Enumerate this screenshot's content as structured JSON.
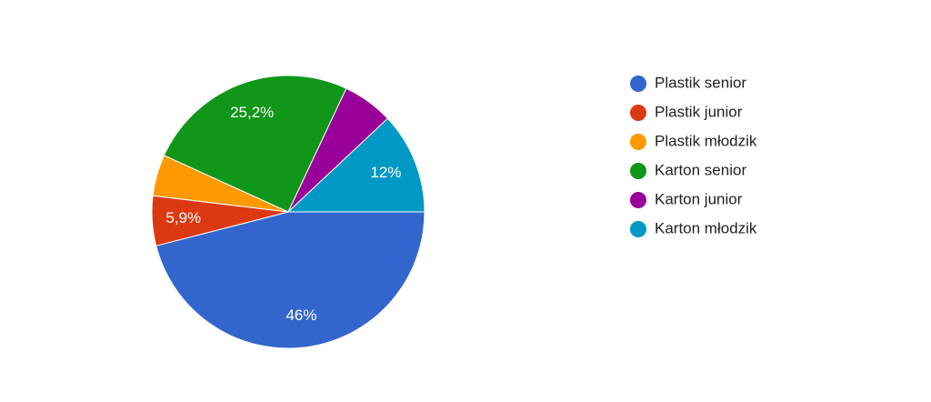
{
  "chart_data": {
    "type": "pie",
    "categories": [
      "Plastik senior",
      "Plastik junior",
      "Plastik młodzik",
      "Karton senior",
      "Karton junior",
      "Karton młodzik"
    ],
    "values": [
      46,
      5.9,
      4.9,
      25.2,
      6.0,
      12
    ],
    "value_labels": [
      "46%",
      "5,9%",
      null,
      "25,2%",
      null,
      "12%"
    ],
    "colors": [
      "#3366cc",
      "#dc3912",
      "#ff9900",
      "#109618",
      "#990099",
      "#0099c6"
    ]
  }
}
